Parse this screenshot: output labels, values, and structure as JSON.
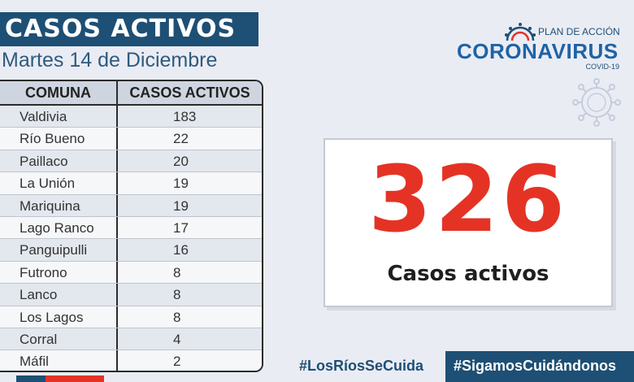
{
  "header": {
    "title": "CASOS ACTIVOS",
    "date": "Martes 14 de Diciembre"
  },
  "table": {
    "columns": [
      "COMUNA",
      "CASOS ACTIVOS"
    ],
    "rows": [
      {
        "comuna": "Valdivia",
        "casos": "183"
      },
      {
        "comuna": "Río Bueno",
        "casos": "22"
      },
      {
        "comuna": "Paillaco",
        "casos": "20"
      },
      {
        "comuna": "La Unión",
        "casos": "19"
      },
      {
        "comuna": "Mariquina",
        "casos": "19"
      },
      {
        "comuna": "Lago Ranco",
        "casos": "17"
      },
      {
        "comuna": "Panguipulli",
        "casos": "16"
      },
      {
        "comuna": "Futrono",
        "casos": "8"
      },
      {
        "comuna": "Lanco",
        "casos": "8"
      },
      {
        "comuna": "Los Lagos",
        "casos": "8"
      },
      {
        "comuna": "Corral",
        "casos": "4"
      },
      {
        "comuna": "Máfil",
        "casos": "2"
      }
    ]
  },
  "logo": {
    "plan": "PLAN DE ACCIÓN",
    "name": "CORONAVIRUS",
    "sub": "COVID-19"
  },
  "total": {
    "value": "326",
    "label": "Casos activos"
  },
  "footer": {
    "hashtag_left": "#LosRíosSeCuida",
    "hashtag_right": "#SigamosCuidándonos"
  },
  "colors": {
    "navy": "#1e4f74",
    "red": "#e43325",
    "background": "#eaecf4"
  },
  "icons": [
    "virus-icon",
    "virus-outline-icon"
  ]
}
